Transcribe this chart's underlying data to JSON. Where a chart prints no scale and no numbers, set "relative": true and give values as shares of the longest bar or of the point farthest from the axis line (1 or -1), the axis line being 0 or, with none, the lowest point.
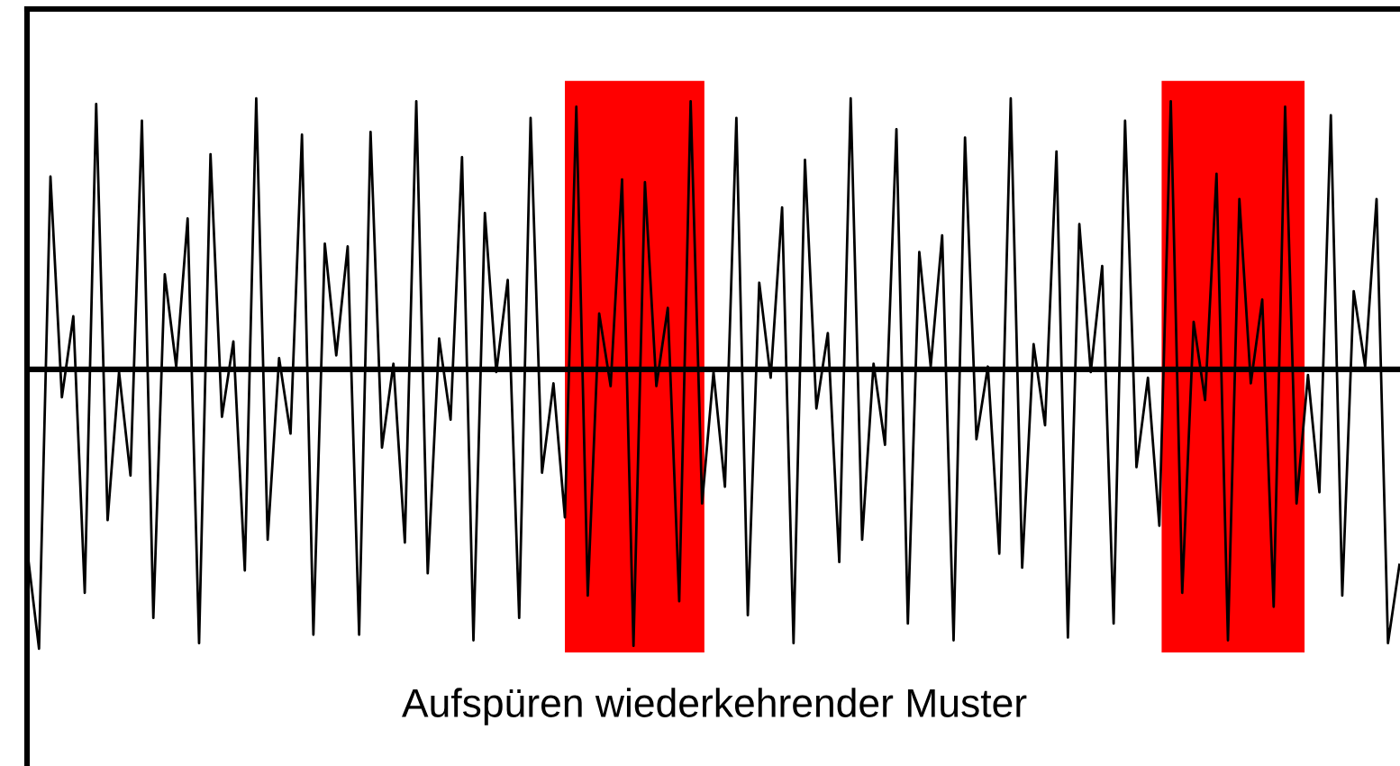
{
  "chart_data": {
    "type": "line",
    "relative": true,
    "marker": "none",
    "line_style": "solid",
    "categories": [
      null,
      null,
      null,
      null,
      null,
      null,
      null,
      null,
      null,
      null,
      null,
      null,
      null,
      null,
      null,
      null,
      null,
      null,
      null,
      null,
      null,
      null,
      null,
      null,
      null,
      null,
      null,
      null,
      null,
      null,
      null,
      null,
      null,
      null,
      null,
      null,
      null,
      null,
      null,
      null,
      null,
      null,
      null,
      null,
      null,
      null,
      null,
      null,
      null,
      null,
      null,
      null,
      null,
      null,
      null,
      null,
      null,
      null,
      null,
      null,
      null,
      null,
      null,
      null,
      null,
      null,
      null,
      null,
      null,
      null,
      null,
      null,
      null,
      null,
      null,
      null,
      null,
      null,
      null,
      null,
      null,
      null,
      null,
      null,
      null,
      null,
      null,
      null,
      null,
      null,
      null,
      null,
      null,
      null,
      null,
      null,
      null,
      null,
      null,
      null,
      null,
      null,
      null,
      null,
      null,
      null,
      null,
      null,
      null,
      null,
      null,
      null,
      null,
      null,
      null,
      null,
      null,
      null,
      null,
      null,
      null
    ],
    "series": [
      {
        "color": "#000000",
        "values": [
          -0.66,
          -1.0,
          0.69,
          -0.1,
          0.19,
          -0.8,
          0.95,
          -0.54,
          -0.01,
          -0.38,
          0.89,
          -0.89,
          0.34,
          0.01,
          0.54,
          -0.98,
          0.77,
          -0.17,
          0.1,
          -0.72,
          0.97,
          -0.61,
          0.04,
          -0.23,
          0.84,
          -0.95,
          0.45,
          0.05,
          0.44,
          -0.95,
          0.85,
          -0.28,
          0.02,
          -0.62,
          0.96,
          -0.73,
          0.11,
          -0.18,
          0.76,
          -0.97,
          0.56,
          -0.01,
          0.32,
          -0.89,
          0.9,
          -0.37,
          -0.05,
          -0.53,
          0.94,
          -0.81,
          0.2,
          -0.06,
          0.68,
          -0.99,
          0.67,
          -0.06,
          0.22,
          -0.83,
          0.96,
          -0.48,
          -0.01,
          -0.42,
          0.9,
          -0.88,
          0.31,
          -0.03,
          0.58,
          -0.98,
          0.75,
          -0.14,
          0.13,
          -0.69,
          0.97,
          -0.61,
          0.02,
          -0.27,
          0.86,
          -0.91,
          0.42,
          0.01,
          0.48,
          -0.97,
          0.83,
          -0.25,
          0.01,
          -0.66,
          0.97,
          -0.71,
          0.09,
          -0.2,
          0.78,
          -0.96,
          0.52,
          -0.01,
          0.37,
          -0.91,
          0.89,
          -0.35,
          -0.03,
          -0.56,
          0.96,
          -0.8,
          0.17,
          -0.11,
          0.7,
          -0.97,
          0.61,
          -0.05,
          0.25,
          -0.85,
          0.94,
          -0.48,
          -0.02,
          -0.44,
          0.91,
          -0.81,
          0.28,
          0.01,
          0.61,
          -0.98,
          -0.7
        ]
      }
    ],
    "annotations": [
      "Aufspüren wiederkehrender Muster"
    ]
  }
}
